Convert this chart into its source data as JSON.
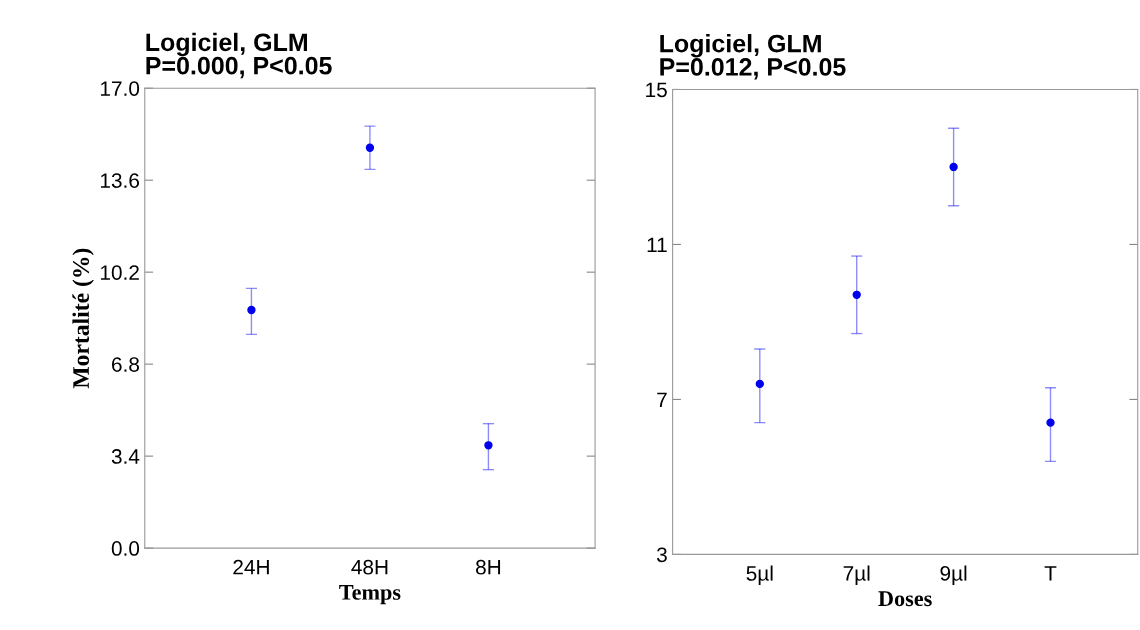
{
  "chart_data": [
    {
      "type": "scatter",
      "title": "Logiciel, GLM\nP=0.000, P<0.05",
      "xlabel": "Temps",
      "ylabel": "Mortalité (%)",
      "categories": [
        "24H",
        "48H",
        "8H"
      ],
      "series": [
        {
          "color": "#0000ee",
          "values": [
            8.8,
            14.8,
            3.8
          ],
          "errors": [
            [
              7.9,
              9.6
            ],
            [
              14.0,
              15.6
            ],
            [
              2.9,
              4.6
            ]
          ]
        }
      ],
      "ylim": [
        0,
        17
      ],
      "yticks": [
        {
          "value": 0,
          "label": "0.0"
        },
        3.4,
        6.8,
        10.2,
        13.6,
        {
          "value": 17,
          "label": "17.0"
        }
      ],
      "marker": "circle",
      "grid": false,
      "legend": false
    },
    {
      "type": "scatter",
      "title": "Logiciel, GLM\nP=0.012, P<0.05",
      "xlabel": "Doses",
      "categories": [
        "5µl",
        "7µl",
        "9µl",
        "T"
      ],
      "series": [
        {
          "color": "#0000ee",
          "values": [
            7.4,
            9.7,
            13.0,
            6.4
          ],
          "errors": [
            [
              6.4,
              8.3
            ],
            [
              8.7,
              10.7
            ],
            [
              12.0,
              14.0
            ],
            [
              5.4,
              7.3
            ]
          ]
        }
      ],
      "ylim": [
        3,
        15
      ],
      "yticks": [
        3,
        7,
        11,
        15
      ],
      "marker": "circle",
      "grid": false,
      "legend": false
    }
  ]
}
